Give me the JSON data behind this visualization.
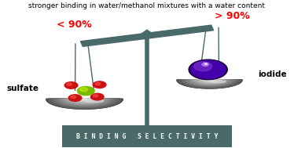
{
  "title_line1": "stronger binding in water/methanol mixtures with a water content",
  "label_left": "< 90%",
  "label_right": "> 90%",
  "label_left_color": "#ff0000",
  "label_right_color": "#ff0000",
  "text_sulfate": "sulfate",
  "text_iodide": "iodide",
  "bottom_text": "B I N D I N G   S E L E C T I V I T Y",
  "bottom_bg_color": "#4a6a6a",
  "bottom_text_color": "#ffffff",
  "scale_color": "#4a6a6a",
  "bg_color": "#ffffff",
  "figsize": [
    3.74,
    1.89
  ],
  "dpi": 100
}
